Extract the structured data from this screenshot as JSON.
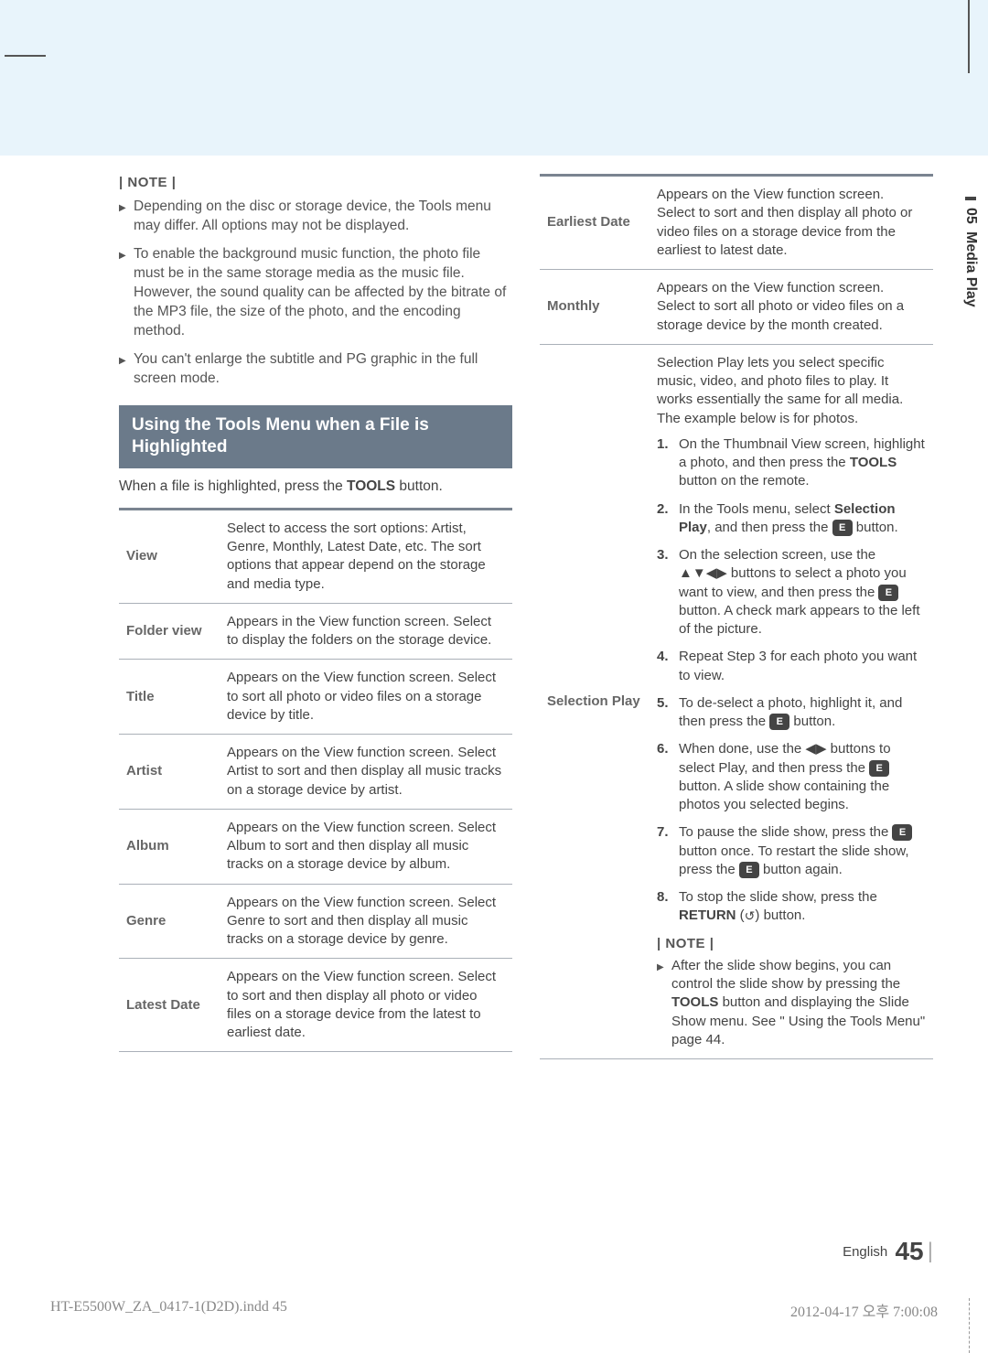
{
  "side_tab": {
    "number": "05",
    "label": "Media Play"
  },
  "left": {
    "note_label": "| NOTE |",
    "bullets": [
      "Depending on the disc or storage device, the Tools menu may differ. All options may not be displayed.",
      "To enable the background music function, the photo file must be in the same storage media as the music file. However, the sound quality can be affected by the bitrate of the MP3 file, the size of the photo, and the encoding method.",
      "You can't enlarge the subtitle and PG graphic in the full screen mode."
    ],
    "section_title": "Using the Tools Menu when a File is Highlighted",
    "intro_pre": "When a file is highlighted, press the ",
    "intro_bold": "TOOLS",
    "intro_post": " button.",
    "rows": [
      {
        "label": "View",
        "desc": "Select to access the sort options: Artist, Genre, Monthly, Latest Date, etc. The sort options that appear depend on the storage and media type."
      },
      {
        "label": "Folder view",
        "desc": "Appears in the View function screen. Select to display the folders on the storage device."
      },
      {
        "label": "Title",
        "desc": "Appears on the View function screen. Select to sort all photo or video files on a storage device by title."
      },
      {
        "label": "Artist",
        "desc": "Appears on the View function screen. Select Artist to sort and then display all music tracks on a storage device by artist."
      },
      {
        "label": "Album",
        "desc": "Appears on the View function screen. Select Album to sort and then display all music tracks on a storage device by album."
      },
      {
        "label": "Genre",
        "desc": "Appears on the View function screen. Select Genre to sort and then display all music tracks on a storage device by genre."
      },
      {
        "label": "Latest Date",
        "desc": "Appears on the View function screen. Select to sort and then display all photo or video files on a storage device from the latest to earliest date."
      }
    ]
  },
  "right": {
    "rows_top": [
      {
        "label": "Earliest Date",
        "desc": "Appears on the View function screen. Select to sort and then display all photo or video files on a storage device from the earliest to latest date."
      },
      {
        "label": "Monthly",
        "desc": "Appears on the View function screen. Select to sort all photo or video files on a storage device by the month created."
      }
    ],
    "selection_label": "Selection Play",
    "selection_intro": "Selection Play lets you select specific music, video, and photo files to play. It works essentially the same for all media. The example below is for photos.",
    "step1_a": "On the Thumbnail View screen, highlight a photo, and then press the ",
    "step1_b": "TOOLS",
    "step1_c": " button on the remote.",
    "step2_a": "In the Tools menu, select ",
    "step2_b": "Selection Play",
    "step2_c": ", and then press the ",
    "step2_d": " button.",
    "step3_a": "On the selection screen, use the ▲▼◀▶ buttons to select a photo you want to view, and then press the ",
    "step3_b": " button. A check mark appears to the left of the picture.",
    "step4": "Repeat Step 3 for each photo you want to view.",
    "step5_a": "To de-select a photo, highlight it, and then press the ",
    "step5_b": " button.",
    "step6_a": "When done, use the ◀▶ buttons to select Play, and then press the ",
    "step6_b": " button. A slide show containing the photos you selected begins.",
    "step7_a": "To pause the slide show, press the ",
    "step7_b": " button once. To restart the slide show, press the ",
    "step7_c": " button again.",
    "step8_a": "To stop the slide show, press the ",
    "step8_b": "RETURN",
    "step8_c": " (",
    "step8_d": ") button.",
    "note_label": "| NOTE |",
    "note_a": "After the slide show begins, you can control the slide show by pressing the ",
    "note_b": "TOOLS",
    "note_c": " button and displaying the Slide Show menu. See \" Using the Tools Menu\" page 44."
  },
  "icons": {
    "enter_glyph": "E",
    "return_glyph": "↺"
  },
  "footer": {
    "lang": "English",
    "page": "45",
    "file": "HT-E5500W_ZA_0417-1(D2D).indd   45",
    "date": "2012-04-17   오후 7:00:08"
  },
  "colors": {
    "topbar": "#e8f4fb",
    "section": "#6b7a8a",
    "border": "#aab0b8"
  }
}
